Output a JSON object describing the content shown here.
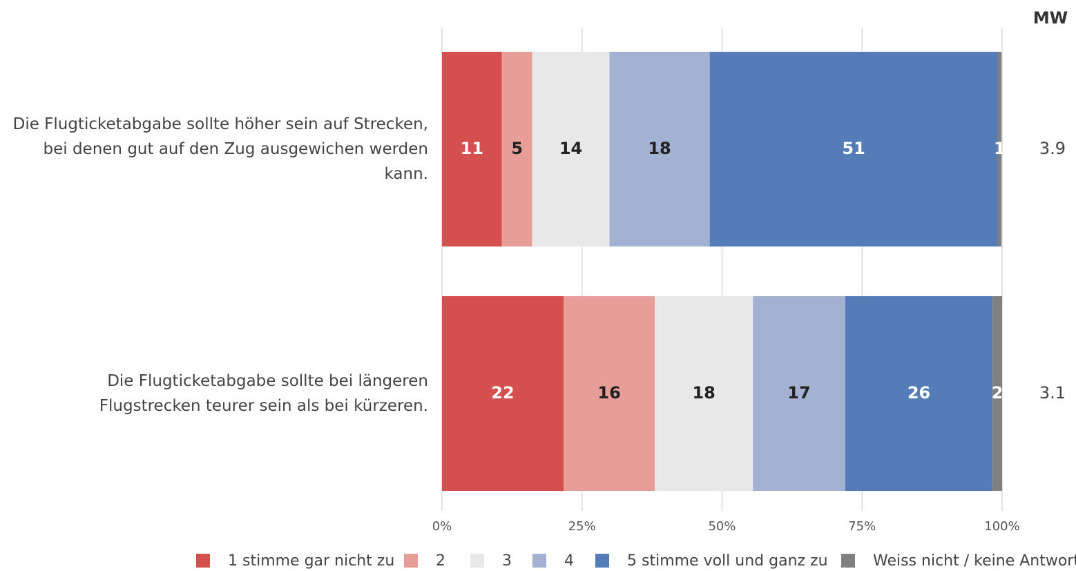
{
  "chart_data": {
    "type": "stacked_barh",
    "categories": [
      "Die Flugticketabgabe sollte höher sein auf Strecken, bei denen gut auf den Zug ausgewichen werden kann.",
      "Die Flugticketabgabe sollte bei längeren Flugstrecken teurer sein als bei kürzeren."
    ],
    "series": [
      {
        "name": "1 stimme gar nicht zu",
        "color": "#d64f4f",
        "label_color": "#ffffff",
        "values": [
          10.7,
          21.7
        ],
        "value_labels": [
          "11",
          "22"
        ]
      },
      {
        "name": "2",
        "color": "#e89e98",
        "label_color": "#222222",
        "values": [
          5.4,
          16.3
        ],
        "value_labels": [
          "5",
          "16"
        ]
      },
      {
        "name": "3",
        "color": "#e8e8e8",
        "label_color": "#222222",
        "values": [
          13.8,
          17.5
        ],
        "value_labels": [
          "14",
          "18"
        ]
      },
      {
        "name": "4",
        "color": "#a3b2d3",
        "label_color": "#222222",
        "values": [
          17.9,
          16.5
        ],
        "value_labels": [
          "18",
          "17"
        ]
      },
      {
        "name": "5 stimme voll und ganz zu",
        "color": "#547db8",
        "label_color": "#ffffff",
        "values": [
          51.4,
          26.3
        ],
        "value_labels": [
          "51",
          "26"
        ]
      },
      {
        "name": "Weiss nicht / keine Antwort",
        "color": "#808080",
        "label_color": "#ffffff",
        "values": [
          0.7,
          1.7
        ],
        "value_labels": [
          "1",
          "2"
        ]
      }
    ],
    "mean_header": "MW",
    "means": [
      3.9,
      3.1
    ],
    "xlim": [
      0,
      100
    ],
    "xticks": [
      {
        "value": 0,
        "label": "0%"
      },
      {
        "value": 25,
        "label": "25%"
      },
      {
        "value": 50,
        "label": "50%"
      },
      {
        "value": 75,
        "label": "75%"
      },
      {
        "value": 100,
        "label": "100%"
      }
    ],
    "grid": true
  }
}
